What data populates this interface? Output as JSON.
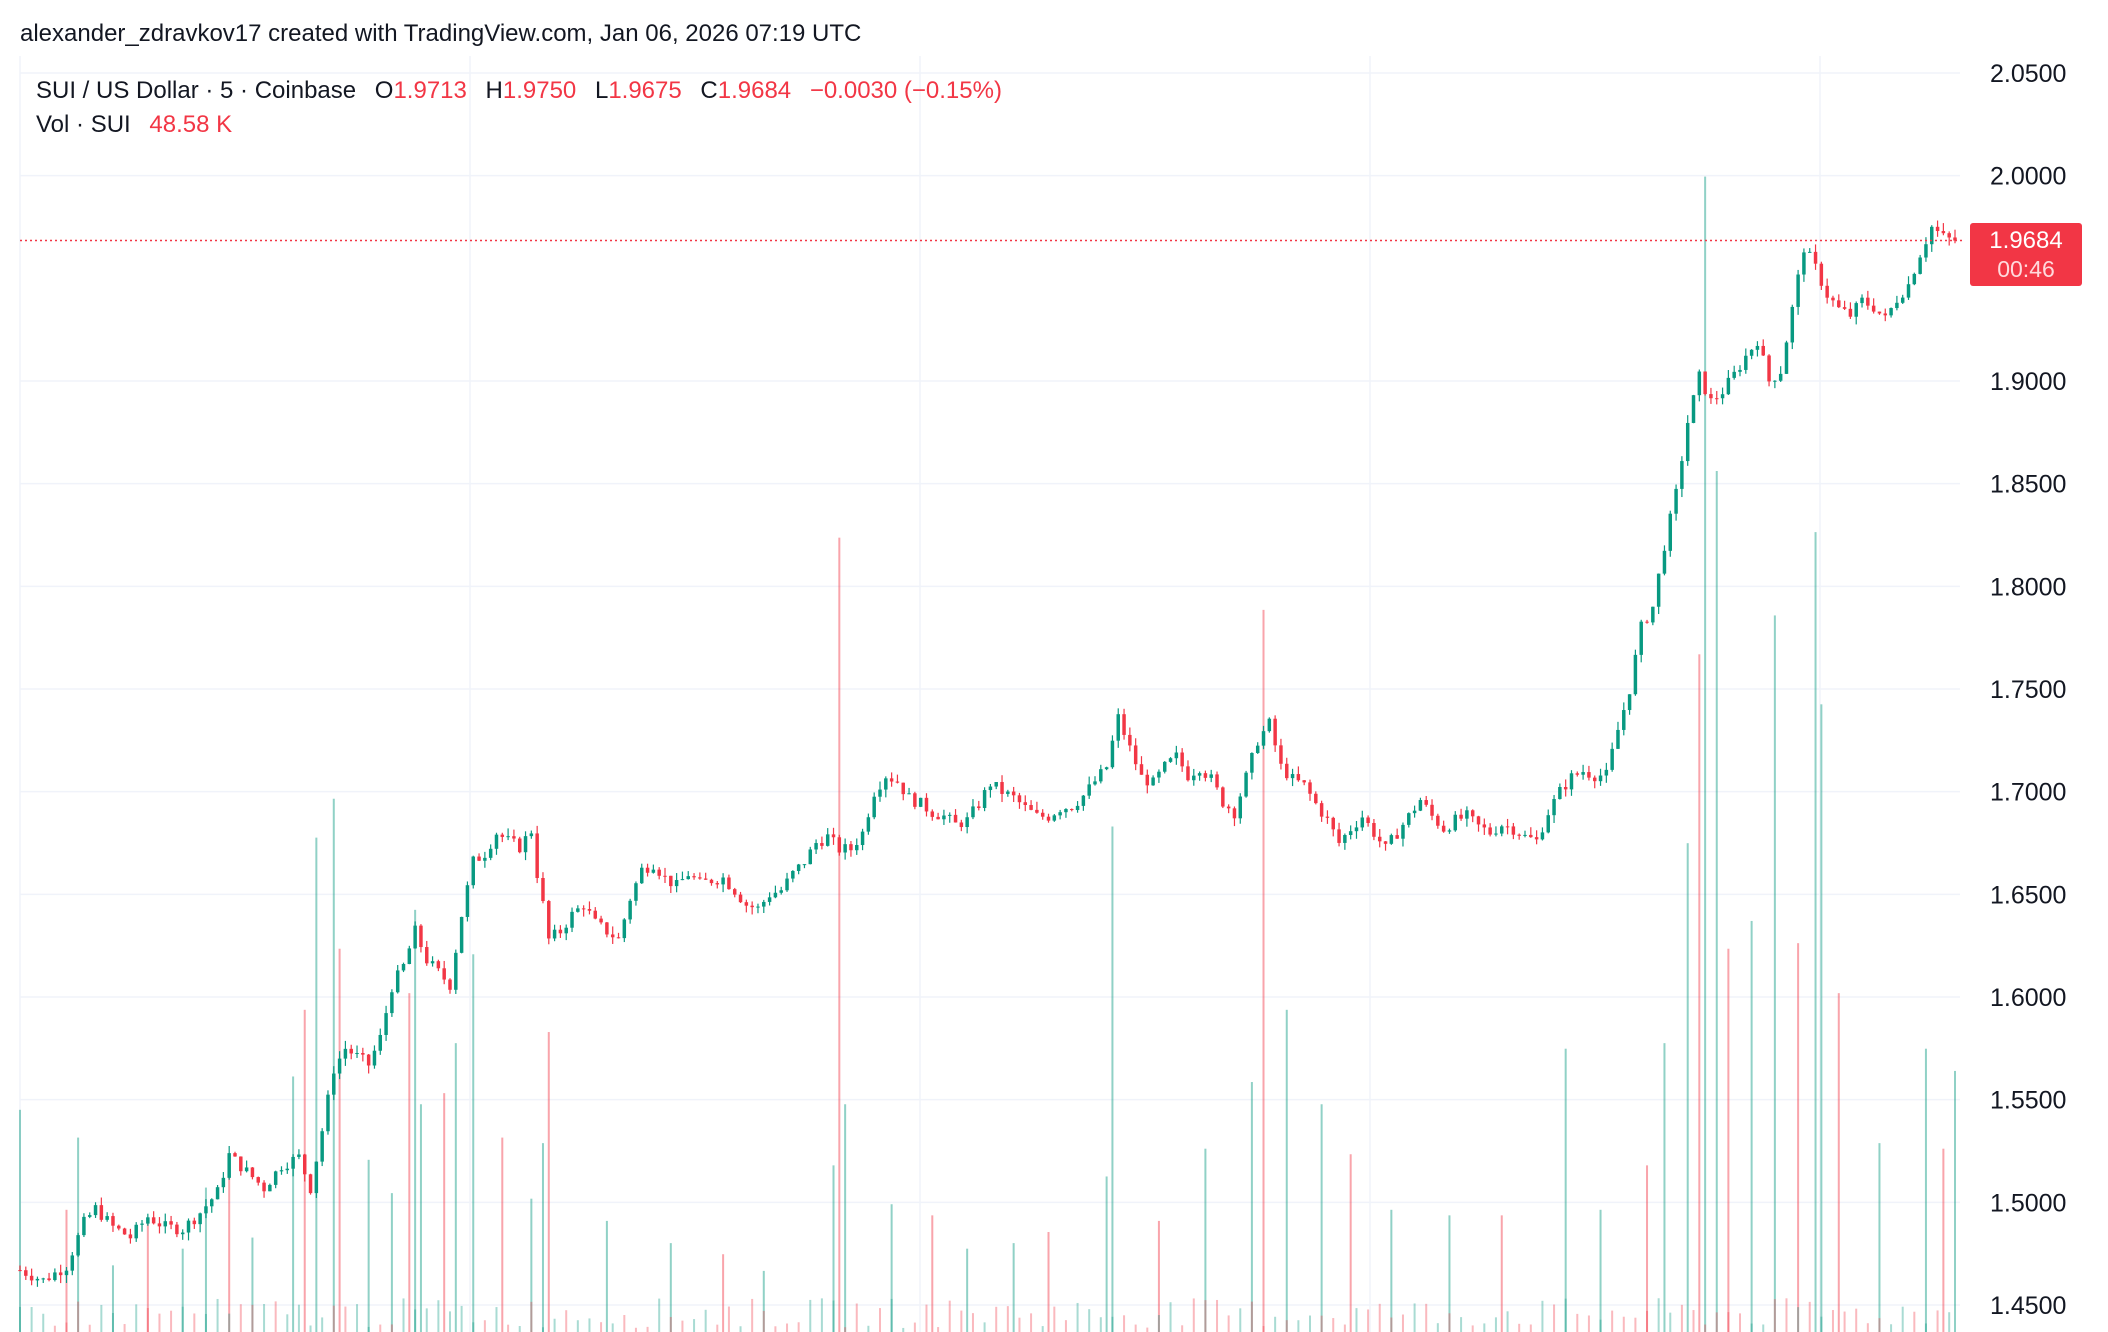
{
  "header": {
    "text": "alexander_zdravkov17 created with TradingView.com, Jan 06, 2026 07:19 UTC"
  },
  "legend": {
    "symbol": "SUI / US Dollar · 5 · Coinbase",
    "o_label": "O",
    "o_value": "1.9713",
    "h_label": "H",
    "h_value": "1.9750",
    "l_label": "L",
    "l_value": "1.9675",
    "c_label": "C",
    "c_value": "1.9684",
    "change": "−0.0030 (−0.15%)",
    "vol_label": "Vol · SUI",
    "vol_value": "48.58 K"
  },
  "last_price": {
    "price": "1.9684",
    "countdown": "00:46"
  },
  "colors": {
    "up": "#089981",
    "down": "#f23645",
    "grid": "#f0f3fa",
    "text": "#131722"
  },
  "chart_data": {
    "type": "candlestick",
    "symbol": "SUI / US Dollar",
    "interval": "5",
    "exchange": "Coinbase",
    "ylim": [
      1.435,
      2.062
    ],
    "y_ticks": [
      "2.0500",
      "2.0000",
      "1.9000",
      "1.8500",
      "1.8000",
      "1.7500",
      "1.7000",
      "1.6500",
      "1.6000",
      "1.5500",
      "1.5000",
      "1.4500"
    ],
    "y_tick_values": [
      2.05,
      2.0,
      1.9,
      1.85,
      1.8,
      1.75,
      1.7,
      1.65,
      1.6,
      1.55,
      1.5,
      1.45
    ],
    "last_close": 1.9684,
    "close_path": [
      [
        0,
        1.467
      ],
      [
        4,
        1.462
      ],
      [
        8,
        1.469
      ],
      [
        11,
        1.49
      ],
      [
        13,
        1.497
      ],
      [
        16,
        1.488
      ],
      [
        19,
        1.483
      ],
      [
        22,
        1.493
      ],
      [
        25,
        1.488
      ],
      [
        28,
        1.487
      ],
      [
        31,
        1.495
      ],
      [
        34,
        1.505
      ],
      [
        36,
        1.523
      ],
      [
        39,
        1.515
      ],
      [
        42,
        1.507
      ],
      [
        45,
        1.518
      ],
      [
        48,
        1.522
      ],
      [
        50,
        1.507
      ],
      [
        52,
        1.535
      ],
      [
        54,
        1.565
      ],
      [
        56,
        1.575
      ],
      [
        58,
        1.571
      ],
      [
        60,
        1.567
      ],
      [
        62,
        1.58
      ],
      [
        64,
        1.605
      ],
      [
        66,
        1.615
      ],
      [
        68,
        1.632
      ],
      [
        70,
        1.618
      ],
      [
        72,
        1.612
      ],
      [
        74,
        1.606
      ],
      [
        76,
        1.64
      ],
      [
        78,
        1.666
      ],
      [
        80,
        1.67
      ],
      [
        82,
        1.68
      ],
      [
        84,
        1.676
      ],
      [
        86,
        1.673
      ],
      [
        88,
        1.681
      ],
      [
        89,
        1.66
      ],
      [
        90,
        1.645
      ],
      [
        91,
        1.628
      ],
      [
        93,
        1.632
      ],
      [
        95,
        1.64
      ],
      [
        97,
        1.645
      ],
      [
        99,
        1.636
      ],
      [
        101,
        1.632
      ],
      [
        103,
        1.628
      ],
      [
        105,
        1.648
      ],
      [
        107,
        1.662
      ],
      [
        109,
        1.665
      ],
      [
        111,
        1.658
      ],
      [
        113,
        1.654
      ],
      [
        115,
        1.66
      ],
      [
        117,
        1.655
      ],
      [
        119,
        1.657
      ],
      [
        121,
        1.658
      ],
      [
        123,
        1.652
      ],
      [
        125,
        1.645
      ],
      [
        127,
        1.643
      ],
      [
        129,
        1.65
      ],
      [
        131,
        1.652
      ],
      [
        133,
        1.66
      ],
      [
        135,
        1.666
      ],
      [
        137,
        1.675
      ],
      [
        139,
        1.678
      ],
      [
        141,
        1.672
      ],
      [
        143,
        1.672
      ],
      [
        145,
        1.68
      ],
      [
        147,
        1.7
      ],
      [
        149,
        1.708
      ],
      [
        151,
        1.705
      ],
      [
        153,
        1.697
      ],
      [
        155,
        1.694
      ],
      [
        157,
        1.69
      ],
      [
        159,
        1.688
      ],
      [
        161,
        1.684
      ],
      [
        163,
        1.686
      ],
      [
        165,
        1.694
      ],
      [
        167,
        1.704
      ],
      [
        169,
        1.7
      ],
      [
        171,
        1.697
      ],
      [
        173,
        1.692
      ],
      [
        175,
        1.688
      ],
      [
        177,
        1.688
      ],
      [
        179,
        1.692
      ],
      [
        181,
        1.693
      ],
      [
        183,
        1.698
      ],
      [
        185,
        1.705
      ],
      [
        187,
        1.712
      ],
      [
        189,
        1.736
      ],
      [
        191,
        1.721
      ],
      [
        193,
        1.707
      ],
      [
        195,
        1.704
      ],
      [
        197,
        1.712
      ],
      [
        199,
        1.717
      ],
      [
        201,
        1.708
      ],
      [
        203,
        1.712
      ],
      [
        205,
        1.706
      ],
      [
        207,
        1.695
      ],
      [
        209,
        1.69
      ],
      [
        211,
        1.707
      ],
      [
        213,
        1.725
      ],
      [
        215,
        1.733
      ],
      [
        217,
        1.712
      ],
      [
        219,
        1.706
      ],
      [
        221,
        1.703
      ],
      [
        223,
        1.694
      ],
      [
        225,
        1.686
      ],
      [
        227,
        1.675
      ],
      [
        229,
        1.682
      ],
      [
        231,
        1.688
      ],
      [
        233,
        1.68
      ],
      [
        235,
        1.672
      ],
      [
        237,
        1.68
      ],
      [
        239,
        1.688
      ],
      [
        241,
        1.696
      ],
      [
        243,
        1.688
      ],
      [
        245,
        1.682
      ],
      [
        247,
        1.686
      ],
      [
        249,
        1.688
      ],
      [
        251,
        1.683
      ],
      [
        253,
        1.68
      ],
      [
        255,
        1.684
      ],
      [
        257,
        1.682
      ],
      [
        259,
        1.678
      ],
      [
        261,
        1.676
      ],
      [
        263,
        1.69
      ],
      [
        265,
        1.7
      ],
      [
        267,
        1.707
      ],
      [
        269,
        1.71
      ],
      [
        271,
        1.708
      ],
      [
        273,
        1.708
      ],
      [
        275,
        1.73
      ],
      [
        277,
        1.75
      ],
      [
        279,
        1.78
      ],
      [
        281,
        1.79
      ],
      [
        283,
        1.82
      ],
      [
        285,
        1.845
      ],
      [
        287,
        1.88
      ],
      [
        289,
        1.902
      ],
      [
        291,
        1.89
      ],
      [
        293,
        1.895
      ],
      [
        295,
        1.903
      ],
      [
        297,
        1.912
      ],
      [
        299,
        1.92
      ],
      [
        301,
        1.9
      ],
      [
        303,
        1.905
      ],
      [
        305,
        1.935
      ],
      [
        307,
        1.965
      ],
      [
        309,
        1.955
      ],
      [
        311,
        1.942
      ],
      [
        313,
        1.935
      ],
      [
        315,
        1.932
      ],
      [
        317,
        1.939
      ],
      [
        319,
        1.936
      ],
      [
        321,
        1.93
      ],
      [
        323,
        1.94
      ],
      [
        325,
        1.947
      ],
      [
        327,
        1.962
      ],
      [
        329,
        1.975
      ],
      [
        331,
        1.97
      ],
      [
        333,
        1.968
      ]
    ],
    "volume_shape": [
      [
        0,
        4.0
      ],
      [
        8,
        2.2
      ],
      [
        10,
        3.5
      ],
      [
        16,
        1.2
      ],
      [
        22,
        2.0
      ],
      [
        28,
        1.5
      ],
      [
        32,
        2.6
      ],
      [
        36,
        3.1
      ],
      [
        40,
        1.7
      ],
      [
        47,
        4.6
      ],
      [
        49,
        5.8
      ],
      [
        51,
        8.9
      ],
      [
        54,
        9.6
      ],
      [
        55,
        6.9
      ],
      [
        60,
        3.1
      ],
      [
        64,
        2.5
      ],
      [
        67,
        6.1
      ],
      [
        68,
        7.6
      ],
      [
        69,
        4.1
      ],
      [
        73,
        4.3
      ],
      [
        75,
        5.2
      ],
      [
        78,
        6.8
      ],
      [
        83,
        3.5
      ],
      [
        88,
        2.4
      ],
      [
        90,
        3.4
      ],
      [
        91,
        5.4
      ],
      [
        101,
        2.0
      ],
      [
        112,
        1.6
      ],
      [
        121,
        1.4
      ],
      [
        128,
        1.1
      ],
      [
        140,
        3.0
      ],
      [
        141,
        14.3
      ],
      [
        142,
        4.1
      ],
      [
        150,
        2.3
      ],
      [
        157,
        2.1
      ],
      [
        163,
        1.5
      ],
      [
        171,
        1.6
      ],
      [
        177,
        1.8
      ],
      [
        187,
        2.8
      ],
      [
        188,
        9.1
      ],
      [
        196,
        2.0
      ],
      [
        204,
        3.3
      ],
      [
        212,
        4.5
      ],
      [
        214,
        13.0
      ],
      [
        218,
        5.8
      ],
      [
        224,
        4.1
      ],
      [
        229,
        3.2
      ],
      [
        236,
        2.2
      ],
      [
        246,
        2.1
      ],
      [
        255,
        2.1
      ],
      [
        266,
        5.1
      ],
      [
        272,
        2.2
      ],
      [
        280,
        3.0
      ],
      [
        283,
        5.2
      ],
      [
        287,
        8.8
      ],
      [
        289,
        12.2
      ],
      [
        290,
        20.8
      ],
      [
        292,
        15.5
      ],
      [
        294,
        6.9
      ],
      [
        298,
        7.4
      ],
      [
        302,
        12.9
      ],
      [
        306,
        7.0
      ],
      [
        309,
        14.4
      ],
      [
        310,
        11.3
      ],
      [
        313,
        6.1
      ],
      [
        320,
        3.4
      ],
      [
        328,
        5.1
      ],
      [
        331,
        3.3
      ],
      [
        333,
        4.7
      ]
    ]
  }
}
